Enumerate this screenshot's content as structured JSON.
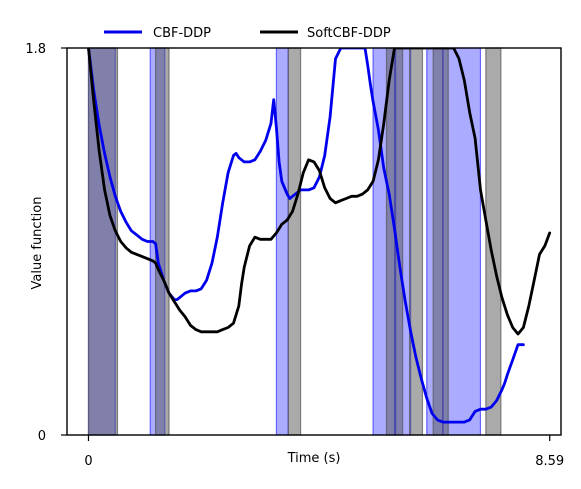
{
  "chart_data": {
    "type": "line",
    "xlabel": "Time (s)",
    "ylabel": "Value function",
    "xlim": [
      -0.4,
      8.8
    ],
    "ylim": [
      0,
      1.8
    ],
    "xticks": [
      {
        "value": 0,
        "label": "0"
      },
      {
        "value": 8.59,
        "label": "8.59"
      }
    ],
    "yticks": [
      {
        "value": 0,
        "label": "0"
      },
      {
        "value": 1.8,
        "label": "1.8"
      }
    ],
    "legend": "top-center",
    "series": [
      {
        "name": "CBF-DDP",
        "color": "#0000ee",
        "x": [
          0.0,
          0.1,
          0.2,
          0.3,
          0.4,
          0.5,
          0.6,
          0.7,
          0.8,
          0.9,
          1.0,
          1.1,
          1.2,
          1.25,
          1.3,
          1.4,
          1.5,
          1.6,
          1.65,
          1.7,
          1.8,
          1.9,
          2.0,
          2.1,
          2.2,
          2.3,
          2.4,
          2.5,
          2.6,
          2.7,
          2.75,
          2.8,
          2.85,
          2.9,
          3.0,
          3.1,
          3.2,
          3.3,
          3.4,
          3.45,
          3.5,
          3.55,
          3.6,
          3.7,
          3.75,
          3.8,
          3.85,
          3.9,
          3.95,
          4.0,
          4.1,
          4.2,
          4.3,
          4.4,
          4.5,
          4.6,
          4.7,
          4.8,
          4.9,
          5.0,
          5.1,
          5.15,
          5.2,
          5.25,
          5.3,
          5.4,
          5.45,
          5.5,
          5.6,
          5.7,
          5.8,
          5.9,
          6.0,
          6.1,
          6.2,
          6.3,
          6.4,
          6.5,
          6.6,
          6.7,
          6.8,
          6.9,
          7.0,
          7.1,
          7.2,
          7.3,
          7.4,
          7.5,
          7.6,
          7.7,
          7.75,
          7.8,
          7.9,
          8.0,
          8.1
        ],
        "y": [
          1.8,
          1.6,
          1.44,
          1.31,
          1.2,
          1.11,
          1.04,
          0.99,
          0.95,
          0.93,
          0.91,
          0.9,
          0.9,
          0.89,
          0.8,
          0.72,
          0.66,
          0.63,
          0.63,
          0.64,
          0.66,
          0.67,
          0.67,
          0.68,
          0.72,
          0.8,
          0.92,
          1.08,
          1.22,
          1.3,
          1.31,
          1.29,
          1.28,
          1.27,
          1.27,
          1.28,
          1.32,
          1.37,
          1.45,
          1.56,
          1.43,
          1.27,
          1.18,
          1.12,
          1.1,
          1.11,
          1.12,
          1.13,
          1.14,
          1.14,
          1.14,
          1.15,
          1.2,
          1.3,
          1.48,
          1.75,
          1.8,
          1.8,
          1.8,
          1.8,
          1.8,
          1.8,
          1.72,
          1.63,
          1.55,
          1.42,
          1.33,
          1.24,
          1.12,
          0.96,
          0.78,
          0.62,
          0.48,
          0.36,
          0.26,
          0.17,
          0.1,
          0.07,
          0.06,
          0.06,
          0.06,
          0.06,
          0.06,
          0.07,
          0.11,
          0.12,
          0.12,
          0.13,
          0.16,
          0.21,
          0.24,
          0.28,
          0.35,
          0.42,
          0.42
        ]
      },
      {
        "name": "SoftCBF-DDP",
        "color": "#000000",
        "x": [
          0.0,
          0.1,
          0.2,
          0.3,
          0.4,
          0.5,
          0.6,
          0.7,
          0.8,
          0.9,
          1.0,
          1.1,
          1.2,
          1.25,
          1.3,
          1.4,
          1.5,
          1.6,
          1.65,
          1.7,
          1.8,
          1.9,
          2.0,
          2.1,
          2.2,
          2.3,
          2.4,
          2.5,
          2.6,
          2.7,
          2.8,
          2.85,
          2.9,
          3.0,
          3.1,
          3.2,
          3.3,
          3.4,
          3.5,
          3.55,
          3.6,
          3.7,
          3.8,
          3.9,
          4.0,
          4.1,
          4.2,
          4.3,
          4.4,
          4.5,
          4.6,
          4.7,
          4.8,
          4.9,
          5.0,
          5.1,
          5.2,
          5.3,
          5.4,
          5.5,
          5.6,
          5.7,
          5.8,
          5.9,
          6.0,
          6.1,
          6.2,
          6.3,
          6.4,
          6.5,
          6.6,
          6.7,
          6.8,
          6.9,
          7.0,
          7.1,
          7.2,
          7.25,
          7.3,
          7.4,
          7.5,
          7.6,
          7.7,
          7.8,
          7.9,
          8.0,
          8.1,
          8.2,
          8.3,
          8.4,
          8.5,
          8.59
        ],
        "y": [
          1.8,
          1.55,
          1.32,
          1.14,
          1.02,
          0.95,
          0.9,
          0.87,
          0.85,
          0.84,
          0.83,
          0.82,
          0.81,
          0.8,
          0.77,
          0.72,
          0.66,
          0.62,
          0.6,
          0.58,
          0.55,
          0.51,
          0.49,
          0.48,
          0.48,
          0.48,
          0.48,
          0.49,
          0.5,
          0.52,
          0.6,
          0.7,
          0.78,
          0.88,
          0.92,
          0.91,
          0.91,
          0.91,
          0.94,
          0.96,
          0.98,
          1.0,
          1.04,
          1.12,
          1.22,
          1.28,
          1.27,
          1.23,
          1.15,
          1.1,
          1.08,
          1.09,
          1.1,
          1.11,
          1.11,
          1.12,
          1.14,
          1.18,
          1.28,
          1.45,
          1.65,
          1.8,
          1.8,
          1.8,
          1.8,
          1.8,
          1.8,
          1.8,
          1.8,
          1.8,
          1.8,
          1.8,
          1.8,
          1.75,
          1.65,
          1.5,
          1.38,
          1.26,
          1.14,
          1.0,
          0.86,
          0.74,
          0.64,
          0.56,
          0.5,
          0.47,
          0.5,
          0.6,
          0.72,
          0.84,
          0.88,
          0.94
        ]
      }
    ],
    "shaded_regions": [
      {
        "series": "CBF-DDP",
        "color": "#0000ff",
        "opacity": 0.33,
        "intervals": [
          [
            0.0,
            0.5
          ],
          [
            1.15,
            1.42
          ],
          [
            3.5,
            3.72
          ],
          [
            5.3,
            5.72
          ],
          [
            5.7,
            6.0
          ],
          [
            6.3,
            6.6
          ],
          [
            6.6,
            7.3
          ]
        ]
      },
      {
        "series": "SoftCBF-DDP",
        "color": "#555555",
        "opacity": 0.5,
        "intervals": [
          [
            0.0,
            0.54
          ],
          [
            1.25,
            1.5
          ],
          [
            3.72,
            3.95
          ],
          [
            5.55,
            5.85
          ],
          [
            5.98,
            6.22
          ],
          [
            6.42,
            6.7
          ],
          [
            7.4,
            7.68
          ]
        ]
      }
    ]
  }
}
